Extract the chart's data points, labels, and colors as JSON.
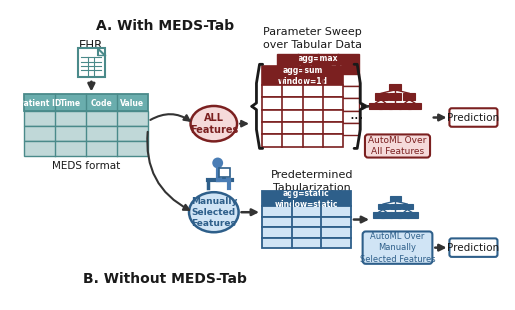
{
  "title_a": "A. With MEDS-Tab",
  "title_b": "B. Without MEDS-Tab",
  "bg_color": "#ffffff",
  "red_dark": "#7B2020",
  "red_light": "#F5DADA",
  "blue_dark": "#2E5F8A",
  "blue_mid": "#4A7DB5",
  "blue_light": "#D0E4F5",
  "teal_dark": "#4A8A8A",
  "teal_light": "#C0D8D8",
  "teal_header": "#6AADAD",
  "gray_arrow": "#333333",
  "text_dark": "#1A1A1A",
  "param_sweep_text": "Parameter Sweep\nover Tabular Data",
  "pred_text_a": "Prediction",
  "pred_text_b": "Prediction",
  "automl_a": "AutoML Over\nAll Features",
  "automl_b": "AutoML Over\nManually\nSelected Features",
  "meds_format": "MEDS format",
  "ehr_text": "EHR",
  "all_features": "ALL\nFeatures",
  "manually_selected": "Manually\nSelected\nFeatures",
  "predetermined": "Predetermined\nTabularization",
  "agg_max": "agg=max\nwindow=7d",
  "agg_sum": "agg=sum\nwindow=1d",
  "agg_static": "agg=static\nwindow=static",
  "col_headers": [
    "Patient ID",
    "Time",
    "Code",
    "Value"
  ]
}
